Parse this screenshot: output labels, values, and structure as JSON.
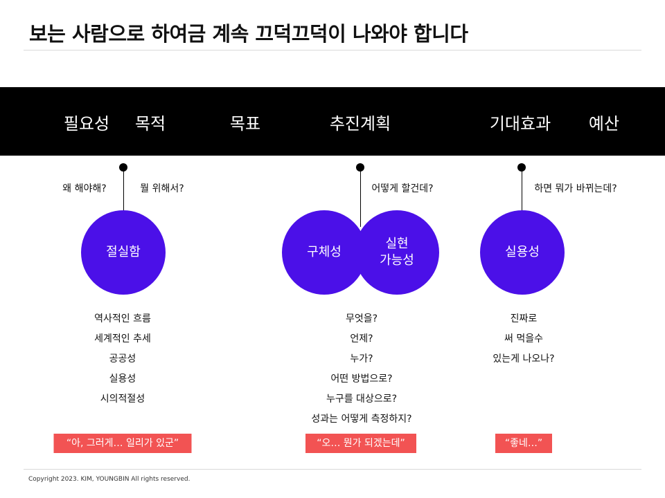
{
  "title": "보는 사람으로 하여금 계속 끄덕끄덕이 나와야 합니다",
  "band": {
    "labels": [
      "필요성",
      "목적",
      "목표",
      "추진계획",
      "기대효과",
      "예산"
    ]
  },
  "columns": [
    {
      "questions": [
        "왜 해야해?",
        "뭘 위해서?"
      ],
      "circles": [
        "절실함"
      ],
      "list": [
        "역사적인 흐름",
        "세계적인 추세",
        "공공성",
        "실용성",
        "시의적절성"
      ],
      "quote": "“아, 그러게… 일리가 있군”"
    },
    {
      "questions": [
        "어떻게 할건데?"
      ],
      "circles": [
        "구체성",
        "실현\n가능성"
      ],
      "list": [
        "무엇을?",
        "언제?",
        "누가?",
        "어떤 방법으로?",
        "누구를 대상으로?",
        "성과는 어떻게 측정하지?"
      ],
      "quote": "“오… 뭔가 되겠는데”"
    },
    {
      "questions": [
        "하면 뭐가 바뀌는데?"
      ],
      "circles": [
        "실용성"
      ],
      "list": [
        "진짜로",
        "써 먹을수",
        "있는게 나오나?"
      ],
      "quote": "“좋네…”"
    }
  ],
  "colors": {
    "circle": "#4b10e8",
    "quote_bg": "#f25353",
    "band_bg": "#000000"
  },
  "footer": "Copyright 2023. KIM, YOUNGBIN All rights reserved."
}
